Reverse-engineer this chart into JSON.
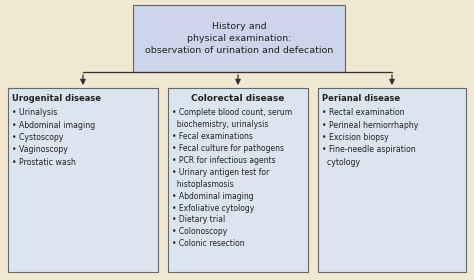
{
  "background_color": "#f0e8d0",
  "box_fill_top": "#cdd5ea",
  "box_fill_bottom": "#dce4f0",
  "box_edge_color": "#666666",
  "text_color": "#222222",
  "title_text": "History and\nphysical examination:\nobservation of urination and defecation",
  "left_title": "Urogenital disease",
  "left_items": [
    "Urinalysis",
    "Abdominal imaging",
    "Cystoscopy",
    "Vaginoscopy",
    "Prostatic wash"
  ],
  "center_title": "Colorectal disease",
  "center_items": [
    "Complete blood count, serum\n  biochemistry, urinalysis",
    "Fecal examinations",
    "Fecal culture for pathogens",
    "PCR for infectious agents",
    "Urinary antigen test for\n  histoplasmosis",
    "Abdominal imaging",
    "Exfoliative cytology",
    "Dietary trial",
    "Colonoscopy",
    "Colonic resection"
  ],
  "right_title": "Perianal disease",
  "right_items": [
    "Rectal examination",
    "Perineal herniorrhaphy",
    "Excision biopsy",
    "Fine-needle aspiration\n  cytology"
  ],
  "arrow_color": "#333333",
  "figsize": [
    4.74,
    2.8
  ],
  "dpi": 100
}
